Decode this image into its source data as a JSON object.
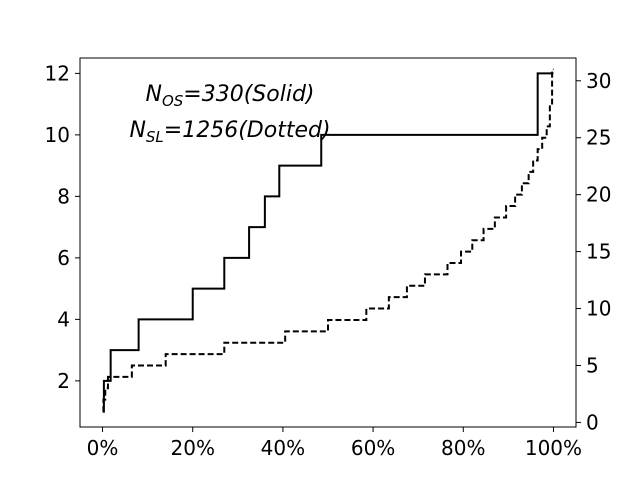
{
  "chart_data": {
    "type": "line",
    "title": "",
    "xlabel": "",
    "ylabel": "",
    "ylabel_right": "",
    "xlim": [
      -0.05,
      1.05
    ],
    "ylim_left": [
      0.5,
      12.5
    ],
    "ylim_right": [
      -0.4,
      32
    ],
    "x_ticks": [
      0,
      0.2,
      0.4,
      0.6,
      0.8,
      1.0
    ],
    "x_tick_labels": [
      "0%",
      "20%",
      "40%",
      "60%",
      "80%",
      "100%"
    ],
    "y_left_ticks": [
      2,
      4,
      6,
      8,
      10,
      12
    ],
    "y_left_tick_labels": [
      "2",
      "4",
      "6",
      "8",
      "10",
      "12"
    ],
    "y_right_ticks": [
      0,
      5,
      10,
      15,
      20,
      25,
      30
    ],
    "y_right_tick_labels": [
      "0",
      "5",
      "10",
      "15",
      "20",
      "25",
      "30"
    ],
    "grid": false,
    "legend": "none",
    "annotation": {
      "line1": {
        "prefix": "N",
        "sub": "OS",
        "suffix": "=330(Solid)"
      },
      "line2": {
        "prefix": "N",
        "sub": "SL",
        "suffix": "=1256(Dotted)"
      }
    },
    "series": [
      {
        "style": "solid",
        "axis": "left",
        "color": "#000000",
        "x": [
          0.0,
          0.003,
          0.003,
          0.018,
          0.018,
          0.08,
          0.08,
          0.2,
          0.2,
          0.27,
          0.27,
          0.325,
          0.325,
          0.36,
          0.36,
          0.392,
          0.392,
          0.485,
          0.485,
          0.965,
          0.965,
          1.0
        ],
        "y": [
          1,
          1,
          2,
          2,
          3,
          3,
          4,
          4,
          5,
          5,
          6,
          6,
          7,
          7,
          8,
          8,
          9,
          9,
          10,
          10,
          12,
          12
        ]
      },
      {
        "style": "dashed",
        "axis": "right",
        "color": "#000000",
        "x": [
          0.0,
          0.002,
          0.002,
          0.006,
          0.006,
          0.012,
          0.012,
          0.065,
          0.065,
          0.14,
          0.14,
          0.27,
          0.27,
          0.405,
          0.405,
          0.5,
          0.5,
          0.585,
          0.585,
          0.635,
          0.635,
          0.675,
          0.675,
          0.715,
          0.715,
          0.765,
          0.765,
          0.795,
          0.795,
          0.82,
          0.82,
          0.845,
          0.845,
          0.87,
          0.87,
          0.895,
          0.895,
          0.915,
          0.915,
          0.93,
          0.93,
          0.945,
          0.945,
          0.955,
          0.955,
          0.965,
          0.965,
          0.975,
          0.975,
          0.985,
          0.985,
          0.992,
          0.992,
          0.997,
          0.997,
          1.0
        ],
        "y": [
          1,
          1,
          2,
          2,
          3,
          3,
          4,
          4,
          5,
          5,
          6,
          6,
          7,
          7,
          8,
          8,
          9,
          9,
          10,
          10,
          11,
          11,
          12,
          12,
          13,
          13,
          14,
          14,
          15,
          15,
          16,
          16,
          17,
          17,
          18,
          18,
          19,
          19,
          20,
          20,
          21,
          21,
          22,
          22,
          23,
          23,
          24,
          24,
          25,
          25,
          26,
          26,
          28,
          28,
          31,
          31
        ]
      }
    ]
  }
}
